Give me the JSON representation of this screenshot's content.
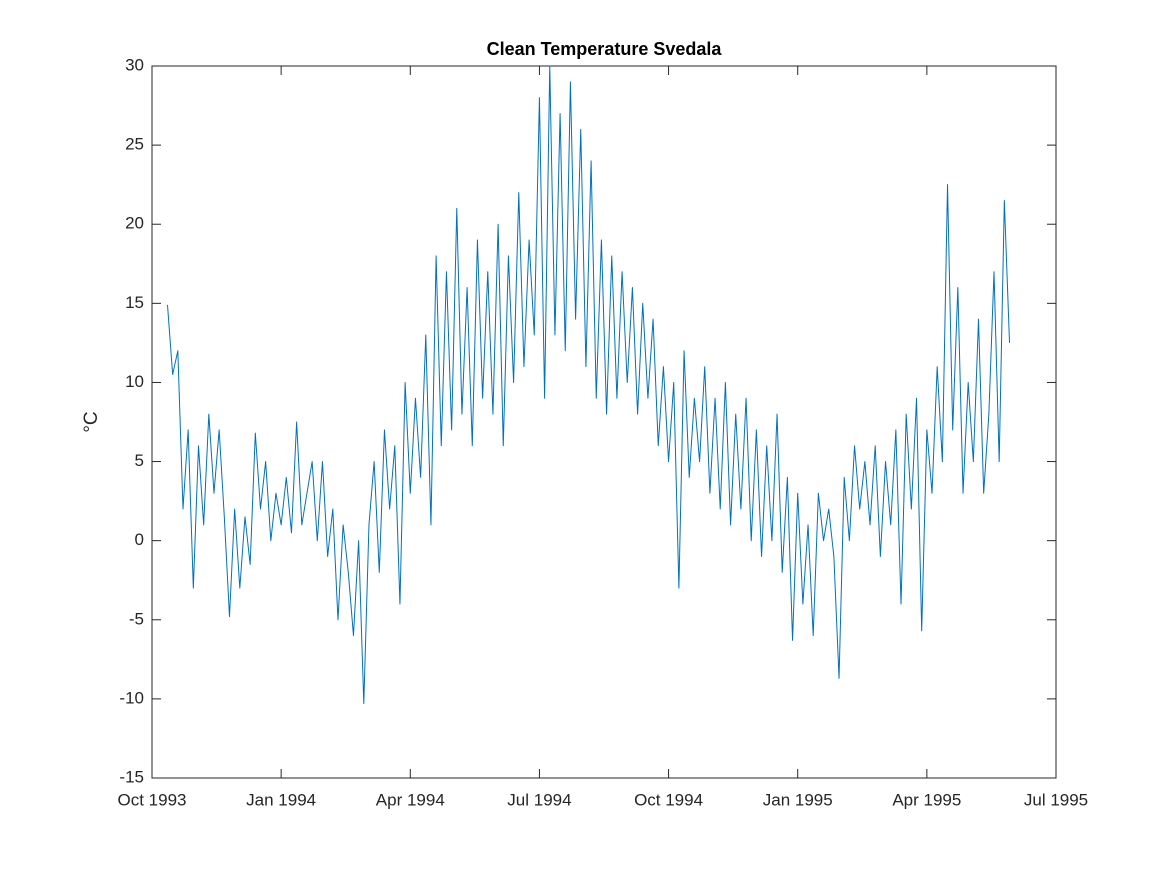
{
  "chart_data": {
    "type": "line",
    "title": "Clean Temperature Svedala",
    "y_label": "°C",
    "x": [
      1993.78,
      1993.79,
      1993.8,
      1993.81,
      1993.82,
      1993.83,
      1993.84,
      1993.85,
      1993.86,
      1993.87,
      1993.88,
      1993.89,
      1993.9,
      1993.91,
      1993.92,
      1993.93,
      1993.94,
      1993.95,
      1993.96,
      1993.97,
      1993.98,
      1993.99,
      1994.0,
      1994.01,
      1994.02,
      1994.03,
      1994.04,
      1994.05,
      1994.06,
      1994.07,
      1994.08,
      1994.09,
      1994.1,
      1994.11,
      1994.12,
      1994.13,
      1994.14,
      1994.15,
      1994.16,
      1994.17,
      1994.18,
      1994.19,
      1994.2,
      1994.21,
      1994.22,
      1994.23,
      1994.24,
      1994.25,
      1994.26,
      1994.27,
      1994.28,
      1994.29,
      1994.3,
      1994.31,
      1994.32,
      1994.33,
      1994.34,
      1994.35,
      1994.36,
      1994.37,
      1994.38,
      1994.39,
      1994.4,
      1994.41,
      1994.42,
      1994.43,
      1994.44,
      1994.45,
      1994.46,
      1994.47,
      1994.48,
      1994.49,
      1994.5,
      1994.51,
      1994.52,
      1994.53,
      1994.54,
      1994.55,
      1994.56,
      1994.57,
      1994.58,
      1994.59,
      1994.6,
      1994.61,
      1994.62,
      1994.63,
      1994.64,
      1994.65,
      1994.66,
      1994.67,
      1994.68,
      1994.69,
      1994.7,
      1994.71,
      1994.72,
      1994.73,
      1994.74,
      1994.75,
      1994.76,
      1994.77,
      1994.78,
      1994.79,
      1994.8,
      1994.81,
      1994.82,
      1994.83,
      1994.84,
      1994.85,
      1994.86,
      1994.87,
      1994.88,
      1994.89,
      1994.9,
      1994.91,
      1994.92,
      1994.93,
      1994.94,
      1994.95,
      1994.96,
      1994.97,
      1994.98,
      1994.99,
      1995.0,
      1995.01,
      1995.02,
      1995.03,
      1995.04,
      1995.05,
      1995.06,
      1995.07,
      1995.08,
      1995.09,
      1995.1,
      1995.11,
      1995.12,
      1995.13,
      1995.14,
      1995.15,
      1995.16,
      1995.17,
      1995.18,
      1995.19,
      1995.2,
      1995.21,
      1995.22,
      1995.23,
      1995.24,
      1995.25,
      1995.26,
      1995.27,
      1995.28,
      1995.29,
      1995.3,
      1995.31,
      1995.32,
      1995.33,
      1995.34,
      1995.35,
      1995.36,
      1995.37,
      1995.38,
      1995.39,
      1995.4,
      1995.41
    ],
    "series": [
      {
        "color": "#0072bd",
        "values": [
          14.9,
          10.5,
          12,
          2,
          7,
          -3,
          6,
          1,
          8,
          3,
          7,
          1.5,
          -4.8,
          2,
          -3,
          1.5,
          -1.5,
          6.8,
          2,
          5,
          0,
          3,
          1,
          4,
          0.5,
          7.5,
          1,
          3,
          5,
          0,
          5,
          -1,
          2,
          -5,
          1,
          -2,
          -6,
          0,
          -10.3,
          1,
          5,
          -2,
          7,
          2,
          6,
          -4,
          10,
          3,
          9,
          4,
          13,
          1,
          18,
          6,
          17,
          7,
          21,
          8,
          16,
          6,
          19,
          9,
          17,
          8,
          20,
          6,
          18,
          10,
          22,
          11,
          19,
          13,
          28,
          9,
          30,
          13,
          27,
          12,
          29,
          14,
          26,
          11,
          24,
          9,
          19,
          8,
          18,
          9,
          17,
          10,
          16,
          8,
          15,
          9,
          14,
          6,
          11,
          5,
          10,
          -3,
          12,
          4,
          9,
          5,
          11,
          3,
          9,
          2,
          10,
          1,
          8,
          2,
          9,
          0,
          7,
          -1,
          6,
          0,
          8,
          -2,
          4,
          -6.3,
          3,
          -4,
          1,
          -6,
          3,
          0,
          2,
          -1,
          -8.7,
          4,
          0,
          6,
          2,
          5,
          1,
          6,
          -1,
          5,
          1,
          7,
          -4,
          8,
          2,
          9,
          -5.7,
          7,
          3,
          11,
          5,
          22.5,
          7,
          16,
          3,
          10,
          5,
          14,
          3,
          8,
          17,
          5,
          21.5,
          12.5
        ]
      }
    ],
    "xlim": [
      1993.75,
      1995.5
    ],
    "xticks": [
      {
        "value": 1993.75,
        "label": "Oct 1993"
      },
      {
        "value": 1994.0,
        "label": "Jan 1994"
      },
      {
        "value": 1994.25,
        "label": "Apr 1994"
      },
      {
        "value": 1994.5,
        "label": "Jul 1994"
      },
      {
        "value": 1994.75,
        "label": "Oct 1994"
      },
      {
        "value": 1995.0,
        "label": "Jan 1995"
      },
      {
        "value": 1995.25,
        "label": "Apr 1995"
      },
      {
        "value": 1995.5,
        "label": "Jul 1995"
      }
    ],
    "ylim": [
      -15,
      30
    ],
    "yticks": [
      -15,
      -10,
      -5,
      0,
      5,
      10,
      15,
      20,
      25,
      30
    ],
    "grid": false
  }
}
